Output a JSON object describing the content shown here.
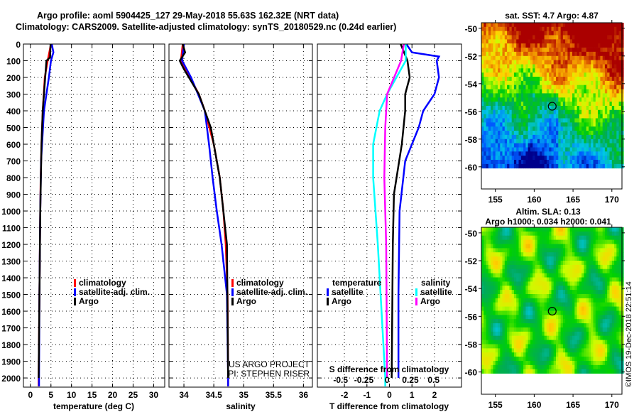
{
  "title": {
    "line1": "Argo profile: aoml 5904425_127 29-May-2018 55.63S 162.32E (NRT data)",
    "line2": "Climatology: CARS2009. Satellite-adjusted climatology: synTS_20180529.nc (0.24d earlier)"
  },
  "colors": {
    "climatology": "#ff0000",
    "satellite": "#0000ff",
    "argo": "#000000",
    "s_satellite": "#00ffff",
    "s_argo": "#ff00ff"
  },
  "chart_data": [
    {
      "type": "line",
      "title": "temperature profile",
      "xlabel": "temperature (deg C)",
      "ylabel": "depth",
      "xlim": [
        -1.7,
        32.7
      ],
      "ylim": [
        2055,
        0
      ],
      "xticks": [
        "0",
        "5",
        "10",
        "15",
        "20",
        "25",
        "30"
      ],
      "xtick_values": [
        0,
        5,
        10,
        15,
        20,
        25,
        30
      ],
      "yticks": [
        "0",
        "100",
        "200",
        "300",
        "400",
        "500",
        "600",
        "700",
        "800",
        "900",
        "1000",
        "1100",
        "1200",
        "1300",
        "1400",
        "1500",
        "1600",
        "1700",
        "1800",
        "1900",
        "2000"
      ],
      "legend": [
        "climatology",
        "satellite-adj. clim.",
        "Argo"
      ],
      "series": [
        {
          "name": "climatology",
          "color": "#ff0000",
          "depth": [
            0,
            100,
            200,
            400,
            600,
            800,
            1000,
            1500,
            2000,
            2050
          ],
          "values": [
            5,
            4.2,
            3.5,
            3.0,
            2.7,
            2.5,
            2.4,
            2.2,
            2.0,
            2.0
          ]
        },
        {
          "name": "satellite-adj. clim.",
          "color": "#0000ff",
          "depth": [
            0,
            50,
            100,
            200,
            400,
            700,
            1000,
            1500,
            2000,
            2050
          ],
          "values": [
            5.2,
            5.6,
            5.0,
            4.5,
            3.3,
            2.6,
            2.4,
            2.2,
            2.1,
            2.1
          ]
        },
        {
          "name": "Argo",
          "color": "#000000",
          "depth": [
            0,
            80,
            100,
            200,
            400,
            600,
            1000,
            1500,
            2000
          ],
          "values": [
            4.9,
            4.8,
            3.9,
            3.6,
            3.0,
            2.7,
            2.4,
            2.2,
            2.0
          ]
        }
      ]
    },
    {
      "type": "line",
      "title": "salinity profile",
      "xlabel": "salinity",
      "xlim": [
        33.75,
        36.15
      ],
      "ylim": [
        2055,
        0
      ],
      "xticks": [
        "34",
        "34.5",
        "35",
        "35.5",
        "36"
      ],
      "xtick_values": [
        34,
        34.5,
        35,
        35.5,
        36
      ],
      "legend": [
        "climatology",
        "satellite-adj. clim.",
        "Argo"
      ],
      "annotation": [
        "US ARGO PROJECT",
        "PI: STEPHEN RISER"
      ],
      "series": [
        {
          "name": "climatology",
          "color": "#ff0000",
          "depth": [
            0,
            100,
            200,
            300,
            400,
            600,
            800,
            1000,
            1200,
            1500,
            2000,
            2050
          ],
          "values": [
            33.98,
            33.95,
            34.1,
            34.25,
            34.35,
            34.5,
            34.6,
            34.66,
            34.7,
            34.73,
            34.74,
            34.74
          ]
        },
        {
          "name": "satellite-adj. clim.",
          "color": "#0000ff",
          "depth": [
            0,
            100,
            200,
            400,
            600,
            800,
            1000,
            1200,
            1500,
            2000,
            2050
          ],
          "values": [
            34.0,
            33.97,
            34.12,
            34.35,
            34.42,
            34.48,
            34.55,
            34.63,
            34.72,
            34.74,
            34.74
          ]
        },
        {
          "name": "Argo",
          "color": "#000000",
          "depth": [
            0,
            50,
            100,
            150,
            300,
            500,
            800,
            1200,
            2000
          ],
          "values": [
            33.98,
            34.02,
            33.93,
            34.0,
            34.25,
            34.45,
            34.6,
            34.72,
            34.74
          ]
        }
      ]
    },
    {
      "type": "line",
      "title": "difference from climatology",
      "xlabel": "T difference from climatology",
      "x2label": "S difference from climatology",
      "xlim": [
        -3.2,
        3.2
      ],
      "x2lim": [
        -0.75,
        0.8
      ],
      "ylim": [
        2055,
        0
      ],
      "xticks": [
        "-2",
        "-1",
        "0",
        "1",
        "2"
      ],
      "xtick_values": [
        -2,
        -1,
        0,
        1,
        2
      ],
      "x2ticks": [
        "-0.5",
        "-0.25",
        "0",
        "0.25",
        "0.5"
      ],
      "x2tick_values": [
        -0.5,
        -0.25,
        0,
        0.25,
        0.5
      ],
      "legend": {
        "temperature_header": "temperature",
        "salinity_header": "salinity",
        "satellite": "satellite",
        "argo": "Argo"
      },
      "series": [
        {
          "name": "T satellite",
          "axis": "T",
          "color": "#0000ff",
          "depth": [
            0,
            50,
            75,
            100,
            200,
            300,
            400,
            500,
            700,
            1000,
            1500,
            2000
          ],
          "values": [
            0.75,
            1.0,
            2.2,
            2.1,
            2.2,
            2.0,
            1.5,
            1.3,
            0.7,
            0.45,
            0.4,
            0.4
          ]
        },
        {
          "name": "T Argo",
          "axis": "T",
          "color": "#000000",
          "depth": [
            0,
            100,
            200,
            300,
            400,
            600,
            900,
            1200,
            2000
          ],
          "values": [
            0.5,
            0.8,
            0.9,
            0.7,
            0.7,
            0.55,
            0.2,
            0.15,
            0.1
          ]
        },
        {
          "name": "S satellite",
          "axis": "S",
          "color": "#00ffff",
          "depth": [
            0,
            100,
            200,
            300,
            400,
            600,
            800,
            1200,
            1600,
            2000,
            2050
          ],
          "values": [
            0.2,
            0.2,
            0.1,
            0.0,
            -0.08,
            -0.15,
            -0.15,
            -0.1,
            -0.06,
            -0.02,
            -0.02
          ]
        },
        {
          "name": "S Argo",
          "axis": "S",
          "color": "#ff00ff",
          "depth": [
            0,
            100,
            300,
            500,
            800,
            1200,
            2000
          ],
          "values": [
            0.18,
            0.15,
            0.0,
            -0.02,
            -0.03,
            -0.01,
            0
          ]
        }
      ]
    },
    {
      "type": "heatmap",
      "title": "sat. SST: 4.7 Argo: 4.87",
      "xlim": [
        153.2,
        171.3
      ],
      "ylim": [
        -61.6,
        -49.6
      ],
      "xticks": [
        "155",
        "160",
        "165",
        "170"
      ],
      "xtick_values": [
        155,
        160,
        165,
        170
      ],
      "yticks": [
        "-50",
        "-52",
        "-54",
        "-56",
        "-58",
        "-60"
      ],
      "ytick_values": [
        -50,
        -52,
        -54,
        -56,
        -58,
        -60
      ],
      "marker": {
        "lon": 162.32,
        "lat": -55.63
      }
    },
    {
      "type": "heatmap",
      "title": [
        "Altim. SLA: 0.13",
        "Argo h1000: 0.034 h2000: 0.041"
      ],
      "xlim": [
        153.2,
        171.3
      ],
      "ylim": [
        -61.6,
        -49.6
      ],
      "xticks": [
        "155",
        "160",
        "165",
        "170"
      ],
      "xtick_values": [
        155,
        160,
        165,
        170
      ],
      "yticks": [
        "-50",
        "-52",
        "-54",
        "-56",
        "-58",
        "-60"
      ],
      "ytick_values": [
        -50,
        -52,
        -54,
        -56,
        -58,
        -60
      ],
      "marker": {
        "lon": 162.32,
        "lat": -55.63
      }
    }
  ],
  "footer": {
    "credit": "©IMOS 19-Dec-2018 22:51:14"
  }
}
